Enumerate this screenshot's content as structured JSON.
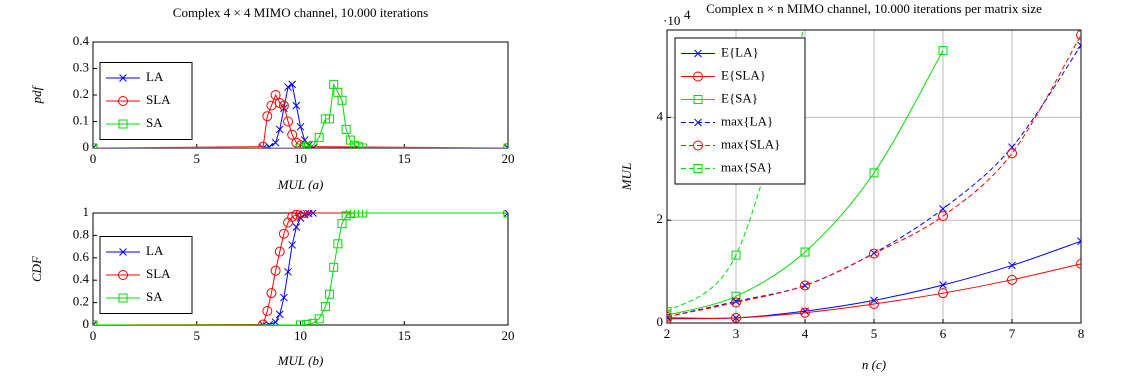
{
  "chart_data": [
    {
      "type": "line",
      "title": "Complex 4 × 4 MIMO channel, 10.000 iterations",
      "x_label": "MUL (a)",
      "y_label": "pdf",
      "xlim": [
        0,
        20
      ],
      "xticks": [
        0,
        5,
        10,
        15,
        20
      ],
      "ylim": [
        0,
        0.4
      ],
      "yticks": [
        0,
        0.1,
        0.2,
        0.3,
        0.4
      ],
      "grid": false,
      "legend": "west",
      "series": [
        {
          "name": "LA",
          "color": "#0000ff",
          "marker": "x",
          "x": [
            0,
            8.2,
            8.5,
            8.8,
            9.0,
            9.2,
            9.4,
            9.6,
            9.8,
            10.0,
            10.2,
            10.4,
            10.6,
            20
          ],
          "values": [
            0,
            0,
            0.005,
            0.02,
            0.07,
            0.15,
            0.23,
            0.24,
            0.16,
            0.08,
            0.03,
            0.01,
            0,
            0
          ]
        },
        {
          "name": "SLA",
          "color": "#ff0000",
          "marker": "o",
          "x": [
            0,
            8.2,
            8.4,
            8.6,
            8.8,
            9.0,
            9.2,
            9.4,
            9.6,
            9.8,
            10.0,
            10.2,
            20
          ],
          "values": [
            0,
            0.005,
            0.12,
            0.16,
            0.2,
            0.17,
            0.16,
            0.1,
            0.05,
            0.02,
            0.01,
            0.005,
            0
          ]
        },
        {
          "name": "SA",
          "color": "#00dd00",
          "marker": "square",
          "x": [
            0,
            10.0,
            10.3,
            10.6,
            10.9,
            11.2,
            11.4,
            11.6,
            11.8,
            12.0,
            12.2,
            12.4,
            12.6,
            12.8,
            13.0,
            20
          ],
          "values": [
            0,
            0,
            0.005,
            0.01,
            0.04,
            0.11,
            0.11,
            0.24,
            0.21,
            0.18,
            0.07,
            0.03,
            0.01,
            0.005,
            0,
            0
          ]
        }
      ]
    },
    {
      "type": "line",
      "x_label": "MUL (b)",
      "y_label": "CDF",
      "xlim": [
        0,
        20
      ],
      "xticks": [
        0,
        5,
        10,
        15,
        20
      ],
      "ylim": [
        0,
        1
      ],
      "yticks": [
        0,
        0.2,
        0.4,
        0.6,
        0.8,
        1
      ],
      "grid": false,
      "legend": "west",
      "series": [
        {
          "name": "LA",
          "color": "#0000ff",
          "marker": "x",
          "x": [
            0,
            8.2,
            8.5,
            8.8,
            9.0,
            9.2,
            9.4,
            9.6,
            9.8,
            10.0,
            10.2,
            10.4,
            10.6,
            20
          ],
          "values": [
            0,
            0,
            0.005,
            0.025,
            0.095,
            0.245,
            0.475,
            0.715,
            0.875,
            0.955,
            0.985,
            0.995,
            1,
            1
          ]
        },
        {
          "name": "SLA",
          "color": "#ff0000",
          "marker": "o",
          "x": [
            0,
            8.2,
            8.4,
            8.6,
            8.8,
            9.0,
            9.2,
            9.4,
            9.6,
            9.8,
            10.0,
            10.2,
            20
          ],
          "values": [
            0,
            0.005,
            0.125,
            0.285,
            0.485,
            0.655,
            0.815,
            0.915,
            0.965,
            0.985,
            0.995,
            1,
            1
          ]
        },
        {
          "name": "SA",
          "color": "#00dd00",
          "marker": "square",
          "x": [
            0,
            10.0,
            10.3,
            10.6,
            10.9,
            11.2,
            11.4,
            11.6,
            11.8,
            12.0,
            12.2,
            12.4,
            12.6,
            12.8,
            13.0,
            20
          ],
          "values": [
            0,
            0,
            0.005,
            0.015,
            0.055,
            0.165,
            0.275,
            0.515,
            0.725,
            0.905,
            0.975,
            0.995,
            1,
            1,
            1,
            1
          ]
        }
      ]
    },
    {
      "type": "line",
      "title": "Complex n × n MIMO channel, 10.000 iterations per matrix size",
      "x_label": "n (c)",
      "y_label": "MUL",
      "scale_base": "·10",
      "scale_exponent": "4",
      "x": [
        2,
        3,
        4,
        5,
        6,
        7,
        8
      ],
      "xlim": [
        2,
        8
      ],
      "xticks": [
        2,
        3,
        4,
        5,
        6,
        7,
        8
      ],
      "ylim": [
        0,
        5.7
      ],
      "yticks": [
        0,
        2,
        4
      ],
      "grid": true,
      "legend": "north west",
      "smooth": true,
      "series": [
        {
          "name": "E{LA}",
          "color": "#0000ff",
          "marker": "x",
          "line": "solid",
          "values": [
            0.1,
            0.1,
            0.23,
            0.44,
            0.74,
            1.12,
            1.59
          ]
        },
        {
          "name": "E{SLA}",
          "color": "#ff0000",
          "marker": "o",
          "line": "solid",
          "values": [
            0.08,
            0.1,
            0.2,
            0.37,
            0.58,
            0.84,
            1.15
          ]
        },
        {
          "name": "E{SA}",
          "color": "#00dd00",
          "marker": "square",
          "line": "solid",
          "values": [
            0.15,
            0.52,
            1.38,
            2.92,
            5.3,
            null,
            null
          ]
        },
        {
          "name": "max{LA}",
          "color": "#0000ff",
          "marker": "x",
          "line": "dashed",
          "values": [
            0.12,
            0.42,
            0.73,
            1.36,
            2.22,
            3.42,
            5.4
          ]
        },
        {
          "name": "max{SLA}",
          "color": "#ff0000",
          "marker": "o",
          "line": "dashed",
          "values": [
            0.12,
            0.4,
            0.73,
            1.35,
            2.08,
            3.3,
            5.6
          ]
        },
        {
          "name": "max{SA}",
          "color": "#00dd00",
          "marker": "square",
          "line": "dashed",
          "values": [
            0.22,
            1.32,
            5.8,
            null,
            null,
            null,
            null
          ]
        }
      ]
    }
  ]
}
